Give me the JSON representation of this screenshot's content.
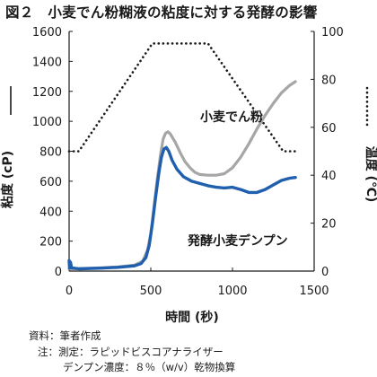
{
  "title": "図２　小麦でん粉糊液の粘度に対する発酵の影響",
  "chart_data": {
    "type": "line",
    "xlabel": "時間 (秒)",
    "ylabel_left": "粘度 (cP)",
    "ylabel_right": "温度 (℃)",
    "xlim": [
      0,
      1500
    ],
    "ylim_left": [
      0,
      1600
    ],
    "ylim_right": [
      0,
      100
    ],
    "x_ticks": [
      "0",
      "500",
      "1000",
      "1500"
    ],
    "y_left_ticks": [
      "0",
      "200",
      "400",
      "600",
      "800",
      "1000",
      "1200",
      "1400",
      "1600"
    ],
    "y_right_ticks": [
      "0",
      "20",
      "40",
      "60",
      "80",
      "100"
    ],
    "grid": false,
    "series": [
      {
        "name": "小麦でん粉",
        "axis": "left",
        "color": "#a6a6a6",
        "style": "solid",
        "points": [
          [
            0,
            15
          ],
          [
            100,
            18
          ],
          [
            200,
            22
          ],
          [
            300,
            28
          ],
          [
            400,
            40
          ],
          [
            450,
            65
          ],
          [
            480,
            140
          ],
          [
            500,
            250
          ],
          [
            520,
            430
          ],
          [
            540,
            620
          ],
          [
            560,
            780
          ],
          [
            575,
            880
          ],
          [
            590,
            920
          ],
          [
            605,
            930
          ],
          [
            620,
            915
          ],
          [
            650,
            860
          ],
          [
            680,
            790
          ],
          [
            710,
            730
          ],
          [
            740,
            690
          ],
          [
            770,
            660
          ],
          [
            800,
            645
          ],
          [
            850,
            640
          ],
          [
            900,
            640
          ],
          [
            950,
            650
          ],
          [
            1000,
            690
          ],
          [
            1050,
            760
          ],
          [
            1100,
            850
          ],
          [
            1150,
            950
          ],
          [
            1200,
            1040
          ],
          [
            1250,
            1120
          ],
          [
            1300,
            1190
          ],
          [
            1350,
            1240
          ],
          [
            1385,
            1265
          ]
        ]
      },
      {
        "name": "発酵小麦デンプン",
        "axis": "left",
        "color": "#1f5fae",
        "style": "solid",
        "points": [
          [
            0,
            70
          ],
          [
            3,
            20
          ],
          [
            8,
            60
          ],
          [
            15,
            22
          ],
          [
            60,
            15
          ],
          [
            200,
            20
          ],
          [
            300,
            25
          ],
          [
            400,
            35
          ],
          [
            440,
            50
          ],
          [
            470,
            90
          ],
          [
            490,
            170
          ],
          [
            510,
            320
          ],
          [
            530,
            500
          ],
          [
            550,
            660
          ],
          [
            565,
            760
          ],
          [
            580,
            815
          ],
          [
            595,
            825
          ],
          [
            610,
            800
          ],
          [
            630,
            740
          ],
          [
            660,
            680
          ],
          [
            700,
            630
          ],
          [
            750,
            600
          ],
          [
            800,
            585
          ],
          [
            850,
            570
          ],
          [
            900,
            560
          ],
          [
            950,
            555
          ],
          [
            1000,
            560
          ],
          [
            1050,
            545
          ],
          [
            1100,
            525
          ],
          [
            1150,
            525
          ],
          [
            1200,
            545
          ],
          [
            1250,
            575
          ],
          [
            1300,
            605
          ],
          [
            1350,
            620
          ],
          [
            1385,
            625
          ]
        ]
      },
      {
        "name": "温度",
        "axis": "right",
        "color": "#1a1a1a",
        "style": "dotted",
        "points": [
          [
            0,
            50
          ],
          [
            60,
            50
          ],
          [
            510,
            95
          ],
          [
            850,
            95
          ],
          [
            1310,
            50
          ],
          [
            1390,
            50
          ]
        ]
      }
    ],
    "annotations": [
      "小麦でん粉",
      "発酵小麦デンプン"
    ]
  },
  "notes": {
    "line1": "資料：筆者作成",
    "line2": "注：測定：ラピッドビスコアナライザー",
    "line3": "デンプン濃度：８％（w/v）乾物換算"
  }
}
